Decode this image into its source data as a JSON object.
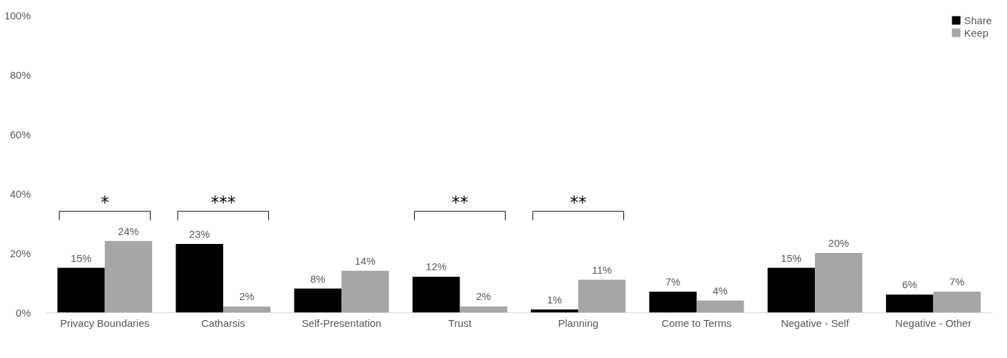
{
  "chart_data": {
    "type": "bar",
    "categories": [
      "Privacy Boundaries",
      "Catharsis",
      "Self-Presentation",
      "Trust",
      "Planning",
      "Come to Terms",
      "Negative - Self",
      "Negative - Other"
    ],
    "series": [
      {
        "name": "Share",
        "color": "#000000",
        "values": [
          15,
          23,
          8,
          12,
          1,
          7,
          15,
          6
        ],
        "value_labels": [
          "15%",
          "23%",
          "8%",
          "12%",
          "1%",
          "7%",
          "15%",
          "6%"
        ]
      },
      {
        "name": "Keep",
        "color": "#a6a6a6",
        "values": [
          24,
          2,
          14,
          2,
          11,
          4,
          20,
          7
        ],
        "value_labels": [
          "24%",
          "2%",
          "14%",
          "2%",
          "11%",
          "4%",
          "20%",
          "7%"
        ]
      }
    ],
    "ylim": [
      0,
      100
    ],
    "yticks": [
      {
        "value": 0,
        "label": "0%"
      },
      {
        "value": 20,
        "label": "20%"
      },
      {
        "value": 40,
        "label": "40%"
      },
      {
        "value": 60,
        "label": "60%"
      },
      {
        "value": 80,
        "label": "80%"
      },
      {
        "value": 100,
        "label": "100%"
      }
    ],
    "grid": false,
    "legend": "top right",
    "annotations": [
      "*",
      "***",
      "**",
      "**"
    ]
  }
}
